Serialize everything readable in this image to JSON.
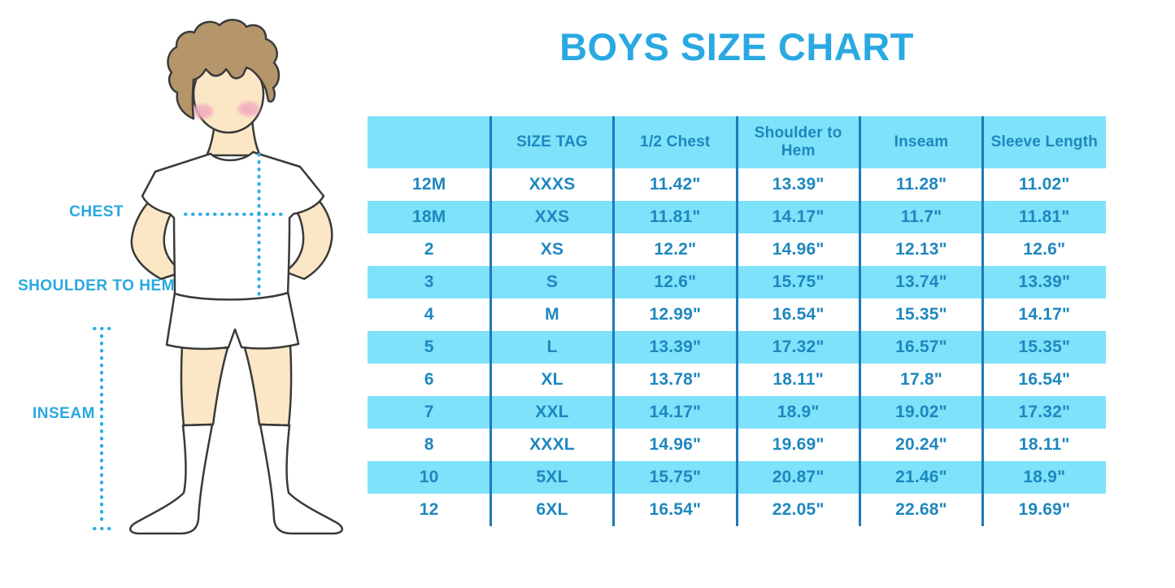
{
  "title": "BOYS SIZE CHART",
  "colors": {
    "title_blue": "#29A9E1",
    "table_text": "#1E87BE",
    "stripe_cyan": "#7DE2FA",
    "divider_blue": "#1E79B8",
    "label_blue": "#29A8E0",
    "dot_blue": "#2BACE2",
    "skin": "#FBE7C5",
    "hair": "#B5956A",
    "blush": "#F2ABBE",
    "outline": "#3A3A3A",
    "garment": "#FFFFFF"
  },
  "figure": {
    "type": "measurement-diagram",
    "description": "cartoon boy in white t-shirt, shorts and knee socks with dotted measurement guides",
    "labels": [
      {
        "id": "chest",
        "text": "CHEST"
      },
      {
        "id": "shoulder-to-hem",
        "text": "SHOULDER TO HEM"
      },
      {
        "id": "inseam",
        "text": "INSEAM"
      }
    ]
  },
  "chart_data": {
    "type": "table",
    "title": "BOYS SIZE CHART",
    "units": "inches",
    "columns": [
      "",
      "SIZE TAG",
      "1/2 Chest",
      "Shoulder to Hem",
      "Inseam",
      "Sleeve Length"
    ],
    "rows": [
      [
        "12M",
        "XXXS",
        "11.42\"",
        "13.39\"",
        "11.28\"",
        "11.02\""
      ],
      [
        "18M",
        "XXS",
        "11.81\"",
        "14.17\"",
        "11.7\"",
        "11.81\""
      ],
      [
        "2",
        "XS",
        "12.2\"",
        "14.96\"",
        "12.13\"",
        "12.6\""
      ],
      [
        "3",
        "S",
        "12.6\"",
        "15.75\"",
        "13.74\"",
        "13.39\""
      ],
      [
        "4",
        "M",
        "12.99\"",
        "16.54\"",
        "15.35\"",
        "14.17\""
      ],
      [
        "5",
        "L",
        "13.39\"",
        "17.32\"",
        "16.57\"",
        "15.35\""
      ],
      [
        "6",
        "XL",
        "13.78\"",
        "18.11\"",
        "17.8\"",
        "16.54\""
      ],
      [
        "7",
        "XXL",
        "14.17\"",
        "18.9\"",
        "19.02\"",
        "17.32\""
      ],
      [
        "8",
        "XXXL",
        "14.96\"",
        "19.69\"",
        "20.24\"",
        "18.11\""
      ],
      [
        "10",
        "5XL",
        "15.75\"",
        "20.87\"",
        "21.46\"",
        "18.9\""
      ],
      [
        "12",
        "6XL",
        "16.54\"",
        "22.05\"",
        "22.68\"",
        "19.69\""
      ]
    ]
  }
}
